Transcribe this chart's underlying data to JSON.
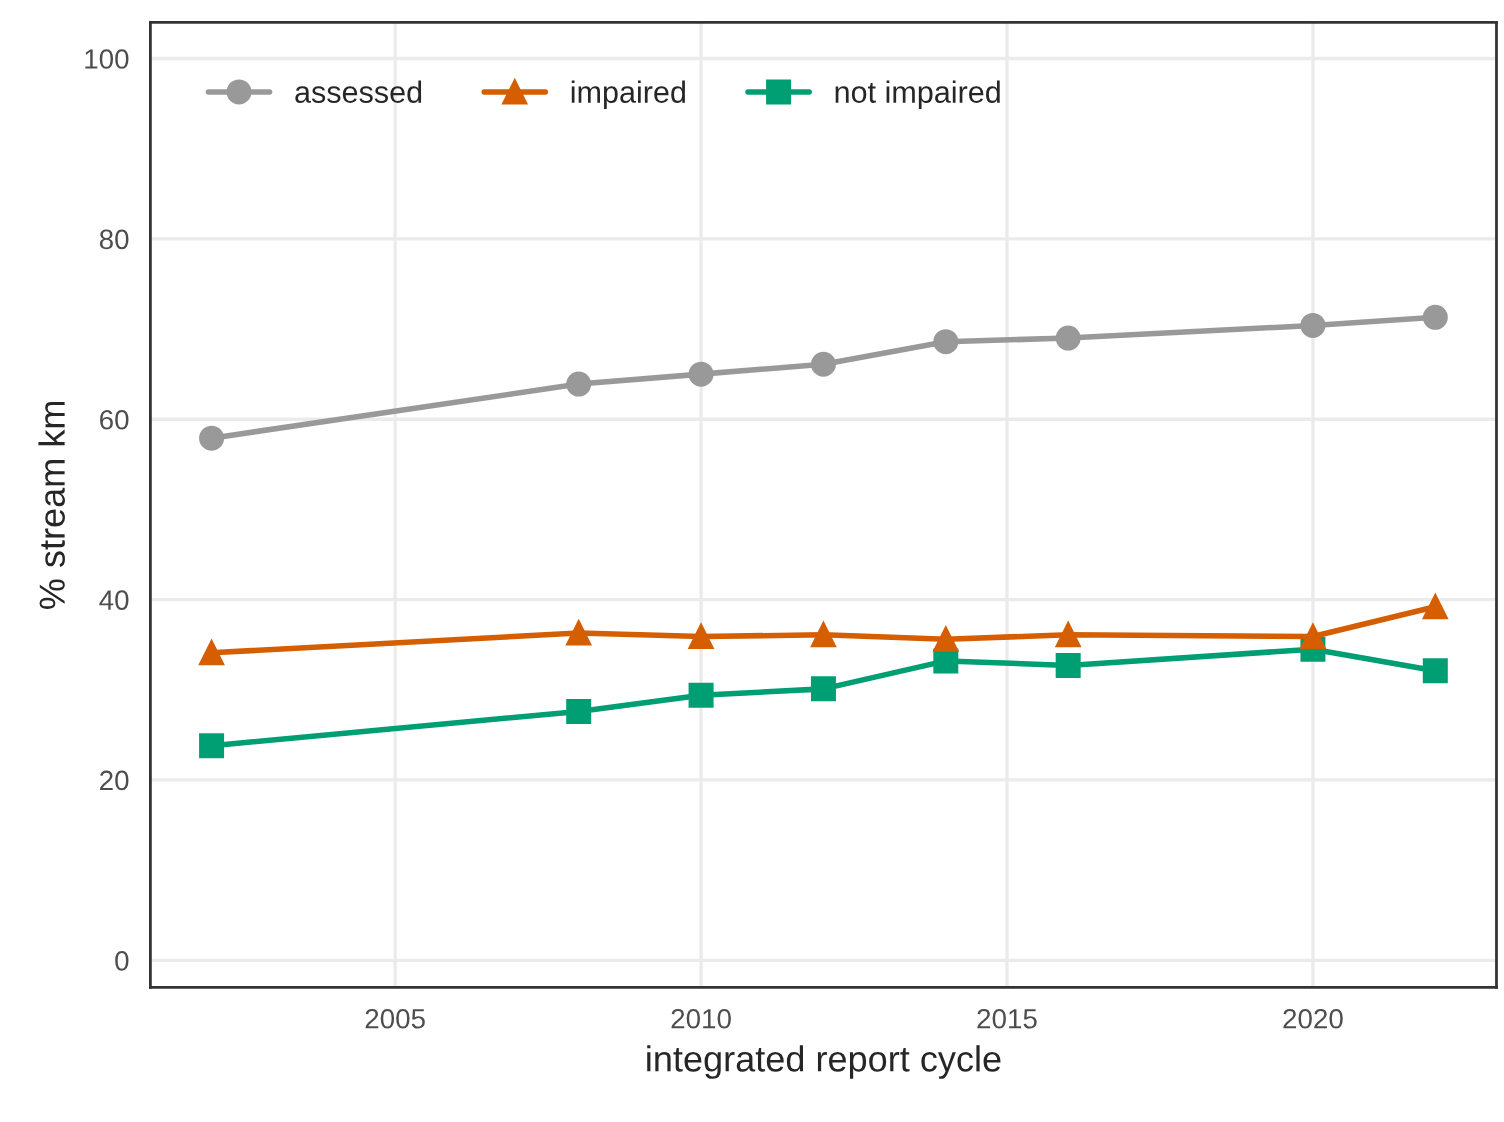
{
  "chart_data": {
    "type": "line",
    "xlabel": "integrated report cycle",
    "ylabel": "% stream km",
    "x": [
      2002,
      2008,
      2010,
      2012,
      2014,
      2016,
      2020,
      2022
    ],
    "series": [
      {
        "name": "assessed",
        "color": "#999999",
        "marker": "circle",
        "values": [
          57.9,
          63.9,
          65.0,
          66.1,
          68.6,
          69.0,
          70.4,
          71.3
        ]
      },
      {
        "name": "impaired",
        "color": "#d55e00",
        "marker": "triangle",
        "values": [
          34.1,
          36.3,
          35.9,
          36.1,
          35.6,
          36.1,
          35.9,
          39.2
        ]
      },
      {
        "name": "not impaired",
        "color": "#009e73",
        "marker": "square",
        "values": [
          23.8,
          27.6,
          29.4,
          30.1,
          33.2,
          32.7,
          34.5,
          32.1
        ]
      }
    ],
    "xlim": [
      2001,
      2023
    ],
    "xticks": [
      2005,
      2010,
      2015,
      2020
    ],
    "ylim": [
      -3,
      104
    ],
    "yticks": [
      0,
      20,
      40,
      60,
      80,
      100
    ],
    "grid": true,
    "legend": "top left",
    "line_style": "solid"
  }
}
